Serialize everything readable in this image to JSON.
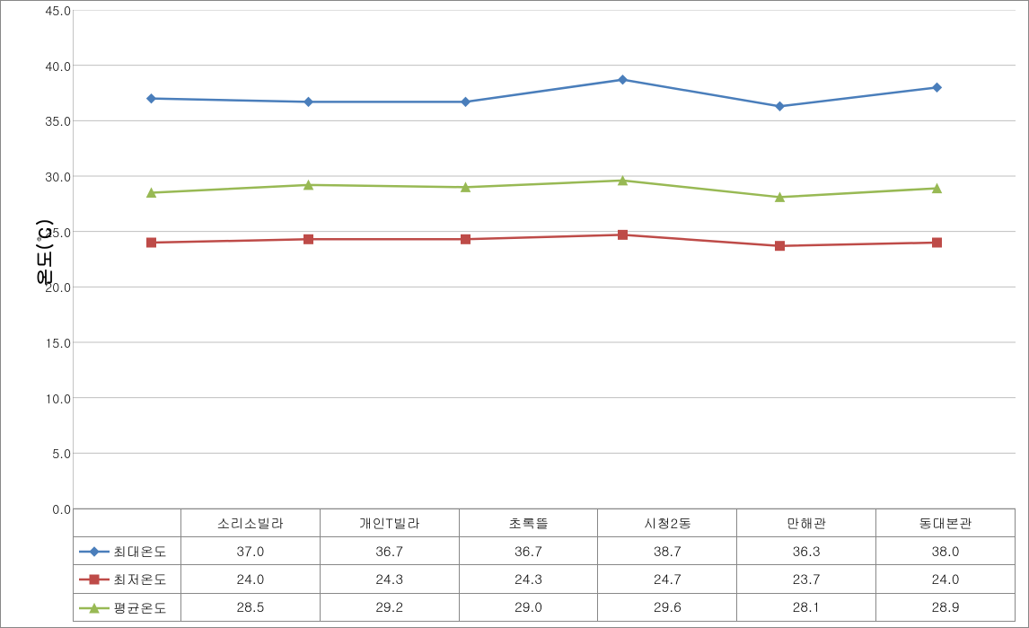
{
  "chart": {
    "type": "line",
    "background_color": "#ffffff",
    "plot_border_color": "#888888",
    "y_axis": {
      "label": "온도(℃)",
      "label_fontsize": 20,
      "label_fontweight": "bold",
      "min": 0,
      "max": 45,
      "tick_step": 5,
      "tick_format_decimals": 1,
      "grid_color": "#bfbfbf",
      "axis_line_color": "#888888",
      "tick_fontsize": 14
    },
    "categories": [
      "소리소빌라",
      "개인T빌라",
      "초록뜰",
      "시청2동",
      "만해관",
      "동대본관"
    ],
    "category_fontsize": 15,
    "series": [
      {
        "name": "최대온도",
        "color": "#4a7ebb",
        "marker": "diamond",
        "marker_size": 8,
        "line_width": 2.5,
        "values": [
          37.0,
          36.7,
          36.7,
          38.7,
          36.3,
          38.0
        ]
      },
      {
        "name": "최저온도",
        "color": "#be4b48",
        "marker": "square",
        "marker_size": 8,
        "line_width": 2.5,
        "values": [
          24.0,
          24.3,
          24.3,
          24.7,
          23.7,
          24.0
        ]
      },
      {
        "name": "평균온도",
        "color": "#98b954",
        "marker": "triangle",
        "marker_size": 8,
        "line_width": 2.5,
        "values": [
          28.5,
          29.2,
          29.0,
          29.6,
          28.1,
          28.9
        ]
      }
    ],
    "table": {
      "cell_fontsize": 15,
      "border_color": "#888888",
      "value_format_decimals": 1
    }
  }
}
